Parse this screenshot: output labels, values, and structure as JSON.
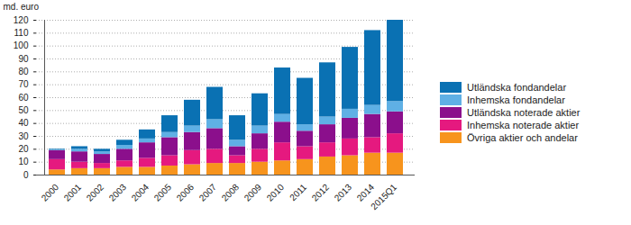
{
  "chart_data": {
    "type": "bar",
    "stacked": true,
    "grid": true,
    "legend": "right",
    "y_label": "md. euro",
    "categories": [
      "2000",
      "2001",
      "2002",
      "2003",
      "2004",
      "2005",
      "2006",
      "2007",
      "2008",
      "2009",
      "2010",
      "2011",
      "2012",
      "2013",
      "2014",
      "2015Q1"
    ],
    "ylim": [
      0,
      120
    ],
    "yticks": [
      0,
      10,
      20,
      30,
      40,
      50,
      60,
      70,
      80,
      90,
      100,
      110,
      120
    ],
    "series": [
      {
        "name": "Övriga aktier och andelar",
        "color": "#f7941d",
        "values": [
          4,
          5,
          5,
          6,
          6,
          7,
          8,
          9,
          9,
          10,
          11,
          12,
          14,
          15,
          17,
          17
        ]
      },
      {
        "name": "Inhemska noterade aktier",
        "color": "#e5197f",
        "values": [
          8,
          5,
          4,
          5,
          7,
          8,
          11,
          11,
          6,
          10,
          14,
          10,
          11,
          13,
          12,
          15
        ]
      },
      {
        "name": "Utländska noterade aktier",
        "color": "#8b0f8c",
        "values": [
          7,
          8,
          7,
          9,
          12,
          14,
          14,
          16,
          7,
          12,
          16,
          12,
          14,
          16,
          18,
          17
        ]
      },
      {
        "name": "Inhemska fondandelar",
        "color": "#5fb0e5",
        "values": [
          0.5,
          2,
          2,
          3,
          3,
          4,
          5,
          7,
          5,
          6,
          6,
          5,
          6,
          7,
          7,
          8
        ]
      },
      {
        "name": "Utländska fondandelar",
        "color": "#0a71b3",
        "values": [
          0.5,
          2,
          2,
          4,
          7,
          13,
          20,
          25,
          19,
          25,
          36,
          36,
          42,
          48,
          58,
          63
        ]
      }
    ]
  }
}
